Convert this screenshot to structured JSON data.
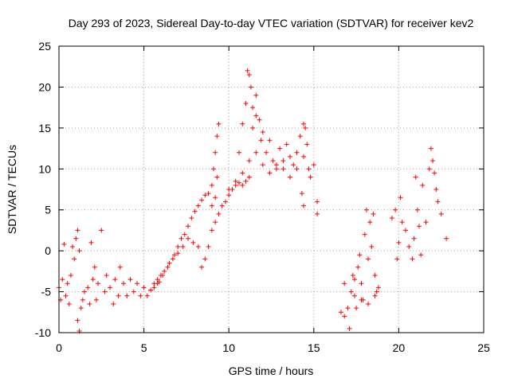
{
  "chart_data": {
    "type": "scatter",
    "title": "Day 293 of 2023, Sidereal Day-to-day VTEC variation (SDTVAR) for receiver kev2",
    "xlabel": "GPS time / hours",
    "ylabel": "SDTVAR / TECUs",
    "xlim": [
      0,
      25
    ],
    "ylim": [
      -10,
      25
    ],
    "xticks": [
      0,
      5,
      10,
      15,
      20,
      25
    ],
    "yticks": [
      -10,
      -5,
      0,
      5,
      10,
      15,
      20,
      25
    ],
    "grid": true,
    "marker": "+",
    "color": "#ff0000",
    "segments": [
      {
        "name": "early-scatter",
        "points": [
          [
            0.0,
            -4.5
          ],
          [
            0.1,
            -6.0
          ],
          [
            0.2,
            -3.5
          ],
          [
            0.3,
            0.8
          ],
          [
            0.4,
            -5.5
          ],
          [
            0.5,
            -4.0
          ],
          [
            0.6,
            -6.5
          ],
          [
            0.7,
            -3.0
          ],
          [
            0.8,
            0.5
          ],
          [
            0.9,
            -1.0
          ],
          [
            1.0,
            1.5
          ],
          [
            1.1,
            2.5
          ],
          [
            1.2,
            0.0
          ],
          [
            1.1,
            -8.5
          ],
          [
            1.2,
            -9.8
          ],
          [
            1.3,
            -7.0
          ],
          [
            1.4,
            -6.0
          ],
          [
            1.5,
            -5.0
          ],
          [
            1.7,
            -4.5
          ],
          [
            1.8,
            -6.5
          ],
          [
            1.9,
            1.0
          ],
          [
            2.0,
            -3.5
          ],
          [
            2.1,
            -2.0
          ],
          [
            2.2,
            -6.0
          ],
          [
            2.3,
            -4.0
          ],
          [
            2.5,
            2.5
          ],
          [
            2.7,
            -5.0
          ],
          [
            2.8,
            -3.0
          ],
          [
            3.0,
            -4.5
          ],
          [
            3.2,
            -6.5
          ],
          [
            3.3,
            -3.5
          ],
          [
            3.5,
            -5.5
          ],
          [
            3.6,
            -2.0
          ],
          [
            3.8,
            -4.0
          ],
          [
            4.0,
            -5.5
          ],
          [
            4.2,
            -3.5
          ],
          [
            4.4,
            -5.0
          ],
          [
            4.6,
            -4.0
          ],
          [
            4.8,
            -5.5
          ],
          [
            5.0,
            -4.5
          ],
          [
            5.2,
            -5.5
          ],
          [
            5.4,
            -4.8
          ],
          [
            5.6,
            -4.0
          ],
          [
            5.8,
            -3.5
          ],
          [
            6.0,
            -3.0
          ]
        ]
      },
      {
        "name": "rise-a",
        "points": [
          [
            5.6,
            -4.5
          ],
          [
            5.9,
            -3.8
          ],
          [
            6.2,
            -2.5
          ],
          [
            6.5,
            -1.5
          ],
          [
            6.8,
            -0.5
          ],
          [
            7.0,
            0.5
          ],
          [
            7.2,
            1.5
          ],
          [
            7.4,
            2.0
          ],
          [
            7.6,
            3.0
          ],
          [
            7.8,
            4.0
          ],
          [
            8.0,
            4.8
          ],
          [
            8.2,
            5.5
          ],
          [
            8.4,
            6.2
          ],
          [
            8.6,
            6.8
          ],
          [
            8.8,
            7.0
          ]
        ]
      },
      {
        "name": "rise-b",
        "points": [
          [
            5.8,
            -4.0
          ],
          [
            6.1,
            -3.0
          ],
          [
            6.4,
            -2.0
          ],
          [
            6.7,
            -1.0
          ],
          [
            7.0,
            -0.3
          ],
          [
            7.3,
            0.5
          ],
          [
            7.6,
            1.5
          ],
          [
            7.9,
            1.0
          ],
          [
            8.2,
            0.5
          ],
          [
            8.4,
            -2.0
          ],
          [
            8.6,
            -1.0
          ],
          [
            8.8,
            0.5
          ],
          [
            9.0,
            2.5
          ],
          [
            9.2,
            3.5
          ],
          [
            9.4,
            4.5
          ],
          [
            9.6,
            5.5
          ],
          [
            9.8,
            6.0
          ],
          [
            10.0,
            6.8
          ],
          [
            10.2,
            7.5
          ],
          [
            10.4,
            8.0
          ],
          [
            10.6,
            8.3
          ],
          [
            10.8,
            8.0
          ],
          [
            11.0,
            8.5
          ],
          [
            11.2,
            9.0
          ]
        ]
      },
      {
        "name": "spike-9h",
        "points": [
          [
            9.0,
            8.0
          ],
          [
            9.1,
            10.0
          ],
          [
            9.2,
            12.0
          ],
          [
            9.3,
            14.0
          ],
          [
            9.4,
            15.5
          ],
          [
            9.3,
            9.0
          ],
          [
            9.2,
            6.5
          ],
          [
            9.0,
            5.5
          ]
        ]
      },
      {
        "name": "peak-11h",
        "points": [
          [
            10.6,
            12.0
          ],
          [
            10.8,
            15.5
          ],
          [
            11.0,
            18.0
          ],
          [
            11.1,
            22.0
          ],
          [
            11.2,
            21.5
          ],
          [
            11.3,
            20.0
          ],
          [
            11.4,
            17.5
          ],
          [
            11.6,
            19.0
          ],
          [
            11.8,
            16.0
          ],
          [
            11.9,
            13.5
          ],
          [
            12.0,
            14.5
          ],
          [
            12.2,
            12.0
          ],
          [
            12.4,
            13.5
          ],
          [
            12.6,
            11.0
          ],
          [
            12.8,
            10.0
          ],
          [
            13.0,
            12.5
          ],
          [
            13.2,
            11.0
          ],
          [
            13.4,
            13.0
          ],
          [
            13.6,
            11.5
          ],
          [
            13.8,
            10.5
          ],
          [
            14.0,
            12.0
          ],
          [
            14.2,
            14.0
          ],
          [
            14.4,
            15.5
          ],
          [
            14.5,
            15.0
          ],
          [
            14.6,
            13.0
          ],
          [
            14.7,
            10.0
          ],
          [
            14.8,
            9.0
          ],
          [
            15.0,
            10.5
          ],
          [
            15.2,
            4.5
          ],
          [
            15.2,
            6.0
          ],
          [
            14.4,
            5.5
          ],
          [
            14.3,
            7.0
          ]
        ]
      },
      {
        "name": "lower-branch",
        "points": [
          [
            10.0,
            7.5
          ],
          [
            10.4,
            8.5
          ],
          [
            10.8,
            9.5
          ],
          [
            11.2,
            11.0
          ],
          [
            11.6,
            12.0
          ],
          [
            12.0,
            10.5
          ],
          [
            12.4,
            9.5
          ],
          [
            12.8,
            10.5
          ],
          [
            13.2,
            10.0
          ],
          [
            13.6,
            9.0
          ],
          [
            14.0,
            10.0
          ],
          [
            14.4,
            11.5
          ],
          [
            11.6,
            16.5
          ],
          [
            11.4,
            15.0
          ]
        ]
      },
      {
        "name": "late-cluster",
        "points": [
          [
            16.6,
            -7.5
          ],
          [
            16.8,
            -8.0
          ],
          [
            17.0,
            -7.0
          ],
          [
            17.1,
            -9.5
          ],
          [
            17.2,
            -5.0
          ],
          [
            17.3,
            -3.0
          ],
          [
            17.4,
            -5.5
          ],
          [
            17.5,
            -7.0
          ],
          [
            17.6,
            -2.0
          ],
          [
            17.7,
            -0.5
          ],
          [
            17.8,
            -4.0
          ],
          [
            17.9,
            -6.0
          ],
          [
            18.0,
            2.0
          ],
          [
            18.1,
            5.0
          ],
          [
            18.2,
            -1.0
          ],
          [
            18.3,
            3.5
          ],
          [
            18.4,
            0.5
          ],
          [
            18.5,
            4.5
          ],
          [
            18.6,
            -3.0
          ],
          [
            18.7,
            -5.0
          ],
          [
            18.8,
            -4.5
          ],
          [
            17.8,
            -6.0
          ],
          [
            18.2,
            -6.5
          ],
          [
            18.6,
            -5.5
          ],
          [
            16.8,
            -4.0
          ],
          [
            17.4,
            -3.5
          ]
        ]
      },
      {
        "name": "final-cluster",
        "points": [
          [
            19.6,
            4.0
          ],
          [
            19.8,
            5.0
          ],
          [
            19.9,
            -1.0
          ],
          [
            20.0,
            1.0
          ],
          [
            20.1,
            6.5
          ],
          [
            20.2,
            3.5
          ],
          [
            20.4,
            2.5
          ],
          [
            20.6,
            0.5
          ],
          [
            20.8,
            -1.0
          ],
          [
            20.9,
            1.5
          ],
          [
            21.0,
            9.0
          ],
          [
            21.1,
            5.0
          ],
          [
            21.2,
            3.0
          ],
          [
            21.3,
            -0.5
          ],
          [
            21.4,
            8.0
          ],
          [
            21.6,
            3.5
          ],
          [
            21.8,
            10.0
          ],
          [
            21.9,
            12.5
          ],
          [
            22.0,
            11.0
          ],
          [
            22.1,
            9.5
          ],
          [
            22.2,
            7.5
          ],
          [
            22.3,
            6.0
          ],
          [
            22.5,
            4.5
          ],
          [
            22.8,
            1.5
          ]
        ]
      }
    ]
  }
}
